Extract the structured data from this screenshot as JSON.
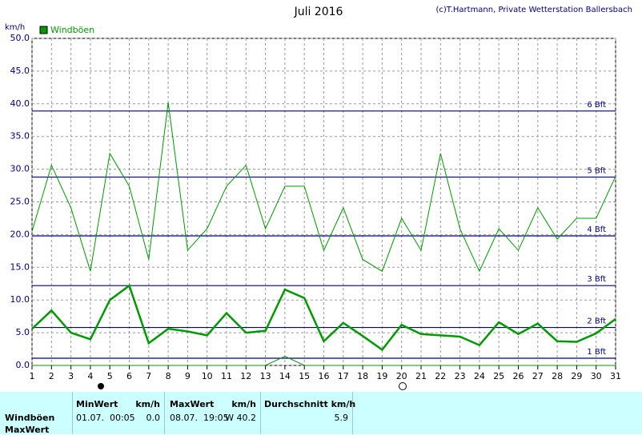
{
  "chart_data": {
    "type": "line",
    "title": "Juli 2016",
    "credit": "(c)T.Hartmann, Private Wetterstation Ballersbach",
    "ylabel": "km/h",
    "x": [
      1,
      2,
      3,
      4,
      5,
      6,
      7,
      8,
      9,
      10,
      11,
      12,
      13,
      14,
      15,
      16,
      17,
      18,
      19,
      20,
      21,
      22,
      23,
      24,
      25,
      26,
      27,
      28,
      29,
      30,
      31
    ],
    "xlim": [
      1,
      31
    ],
    "xticks": [
      1,
      2,
      3,
      4,
      5,
      6,
      7,
      8,
      9,
      10,
      11,
      12,
      13,
      14,
      15,
      16,
      17,
      18,
      19,
      20,
      21,
      22,
      23,
      24,
      25,
      26,
      27,
      28,
      29,
      30,
      31
    ],
    "ylim": [
      0,
      50
    ],
    "yticks": [
      {
        "value": 0,
        "label": "0.0"
      },
      {
        "value": 5,
        "label": "5.0"
      },
      {
        "value": 10,
        "label": "10.0"
      },
      {
        "value": 15,
        "label": "15.0"
      },
      {
        "value": 20,
        "label": "20.0"
      },
      {
        "value": 25,
        "label": "25.0"
      },
      {
        "value": 30,
        "label": "30.0"
      },
      {
        "value": 35,
        "label": "35.0"
      },
      {
        "value": 40,
        "label": "40.0"
      },
      {
        "value": 45,
        "label": "45.0"
      },
      {
        "value": 50,
        "label": "50.0"
      }
    ],
    "grid": true,
    "legend": "top-left",
    "series": [
      {
        "name": "Windböen",
        "color": "#009900",
        "width": 1,
        "values": [
          20.5,
          30.6,
          24.1,
          14.4,
          32.4,
          27.4,
          16.2,
          40.2,
          17.6,
          20.9,
          27.4,
          30.6,
          20.9,
          27.4,
          27.4,
          17.6,
          24.1,
          16.2,
          14.4,
          22.5,
          17.6,
          32.4,
          20.9,
          14.4,
          20.9,
          17.6,
          24.1,
          19.3,
          22.5,
          22.5,
          28.9
        ]
      },
      {
        "color": "#009900",
        "width": 2.5,
        "values": [
          5.6,
          8.4,
          5.0,
          4.0,
          10.0,
          12.2,
          3.4,
          5.6,
          5.2,
          4.6,
          8.0,
          5.0,
          5.3,
          11.6,
          10.3,
          3.7,
          6.5,
          4.5,
          2.4,
          6.2,
          4.8,
          4.6,
          4.4,
          3.1,
          6.6,
          4.8,
          6.4,
          3.7,
          3.6,
          4.9,
          7.1
        ]
      },
      {
        "color": "#009900",
        "width": 1,
        "values": [
          0,
          0,
          0,
          0,
          0,
          0,
          0,
          0,
          0,
          0,
          0,
          0,
          0,
          1.4,
          0,
          0,
          0,
          0,
          0,
          0,
          0,
          0,
          0,
          0,
          0,
          0,
          0,
          0,
          0,
          0,
          0
        ]
      }
    ],
    "reference_lines": [
      {
        "value": 1.1,
        "label": "1 Bft"
      },
      {
        "value": 5.8,
        "label": "2 Bft"
      },
      {
        "value": 12.2,
        "label": "3 Bft"
      },
      {
        "value": 19.8,
        "label": "4 Bft"
      },
      {
        "value": 28.8,
        "label": "5 Bft"
      },
      {
        "value": 38.9,
        "label": "6 Bft"
      }
    ],
    "reference_color": "#000080"
  },
  "table": {
    "headers": [
      "MinWert",
      "km/h",
      "MaxWert",
      "km/h",
      "Durchschnitt km/h"
    ],
    "row_labels": [
      "Windböen",
      "MaxWert"
    ],
    "rows": [
      [
        "01.07.  00:05",
        "0.0",
        "08.07.  19:05",
        "W 40.2",
        "5.9"
      ]
    ]
  }
}
